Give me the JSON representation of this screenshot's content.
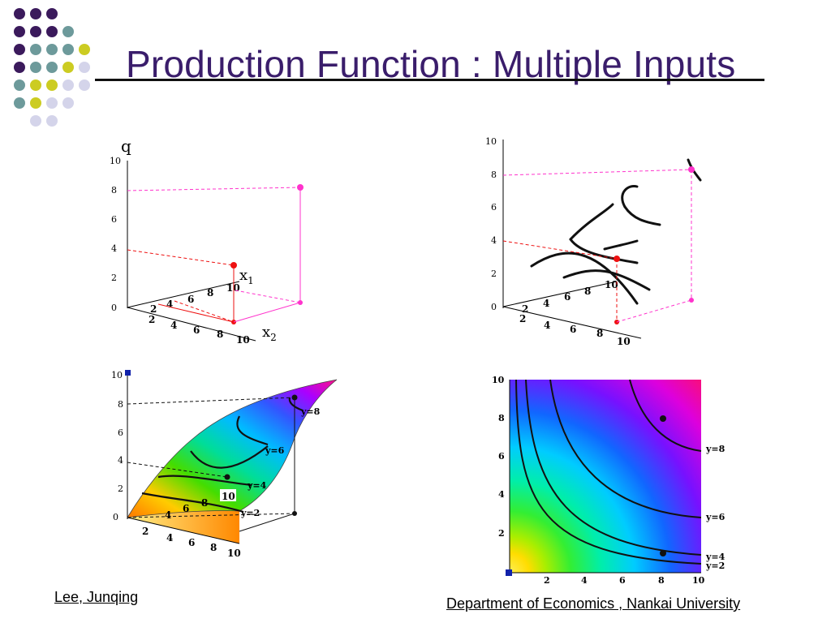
{
  "slide": {
    "title": "Production Function : Multiple Inputs",
    "author": "Lee, Junqing",
    "affiliation": "Department of  Economics , Nankai University"
  },
  "colors": {
    "title": "#3a1d6b",
    "dot_purple": "#3b1a5c",
    "dot_teal": "#6d9a9b",
    "dot_yellow": "#cccc22",
    "dot_lavender": "#d4d4ea",
    "magenta": "#ff33cc",
    "red": "#ee1111"
  },
  "figures": {
    "top_left": {
      "q_label": "q",
      "x1_label": "x",
      "x1_sub": "1",
      "x2_label": "x",
      "x2_sub": "2",
      "vertical_ticks": [
        "0",
        "2",
        "4",
        "6",
        "8",
        "10"
      ],
      "x2_ticks": [
        "2",
        "4",
        "6",
        "8",
        "10"
      ],
      "x1_ticks": [
        "2",
        "4",
        "6",
        "8",
        "10"
      ]
    },
    "top_right": {
      "vertical_ticks": [
        "0",
        "2",
        "4",
        "6",
        "8",
        "10"
      ],
      "x2_ticks": [
        "2",
        "4",
        "6",
        "8",
        "10"
      ],
      "x1_ticks": [
        "2",
        "4",
        "6",
        "8",
        "10"
      ]
    },
    "bottom_left": {
      "vertical_ticks": [
        "0",
        "2",
        "4",
        "6",
        "8",
        "10"
      ],
      "x2_ticks": [
        "2",
        "4",
        "6",
        "8",
        "10"
      ],
      "x1_ticks": [
        "4",
        "6",
        "8",
        "10"
      ],
      "contour_labels": [
        "y=2",
        "y=4",
        "y=6",
        "y=8"
      ]
    },
    "bottom_right": {
      "y_ticks": [
        "2",
        "4",
        "6",
        "8",
        "10"
      ],
      "x_ticks": [
        "2",
        "4",
        "6",
        "8",
        "10"
      ],
      "contour_labels": [
        "y=2",
        "y=4",
        "y=6",
        "y=8"
      ]
    }
  }
}
